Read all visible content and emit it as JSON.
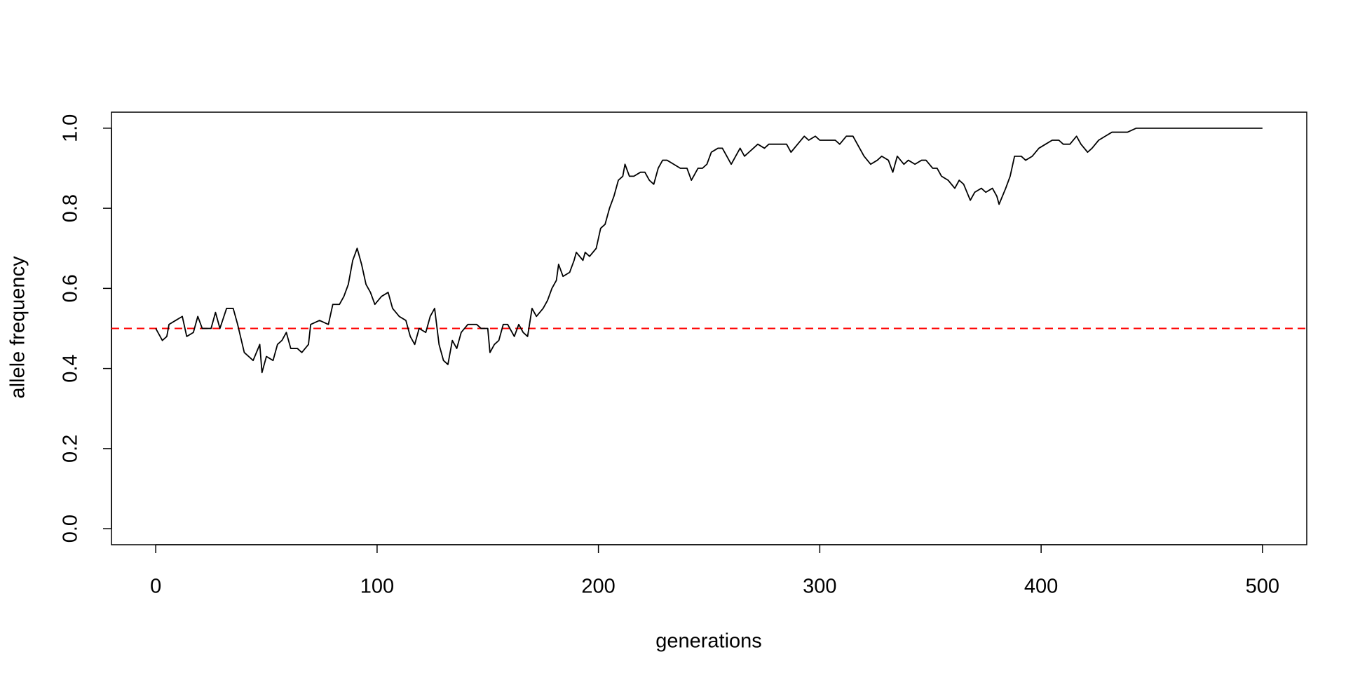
{
  "chart_data": {
    "type": "line",
    "x_label": "generations",
    "y_label": "allele frequency",
    "x": [
      0,
      3,
      5,
      6,
      9,
      12,
      14,
      17,
      19,
      21,
      25,
      27,
      29,
      32,
      35,
      37,
      40,
      44,
      47,
      48,
      50,
      53,
      55,
      57,
      59,
      61,
      64,
      66,
      69,
      70,
      74,
      78,
      80,
      83,
      85,
      87,
      89,
      91,
      93,
      95,
      97,
      99,
      102,
      105,
      107,
      110,
      113,
      115,
      117,
      119,
      122,
      124,
      126,
      128,
      130,
      132,
      134,
      136,
      138,
      141,
      143,
      145,
      147,
      150,
      151,
      153,
      155,
      157,
      159,
      162,
      164,
      166,
      168,
      170,
      172,
      175,
      177,
      179,
      181,
      182,
      184,
      187,
      189,
      190,
      193,
      194,
      196,
      199,
      201,
      203,
      205,
      207,
      209,
      211,
      212,
      214,
      216,
      219,
      221,
      223,
      225,
      227,
      229,
      231,
      234,
      237,
      240,
      242,
      245,
      247,
      249,
      251,
      254,
      256,
      258,
      260,
      262,
      264,
      266,
      268,
      270,
      272,
      275,
      277,
      279,
      282,
      285,
      287,
      290,
      293,
      295,
      298,
      300,
      304,
      307,
      309,
      312,
      315,
      318,
      320,
      323,
      326,
      328,
      331,
      333,
      335,
      338,
      340,
      343,
      346,
      348,
      351,
      353,
      355,
      358,
      361,
      363,
      365,
      368,
      370,
      373,
      375,
      378,
      380,
      381,
      384,
      386,
      388,
      391,
      393,
      396,
      399,
      402,
      405,
      408,
      410,
      413,
      416,
      418,
      421,
      423,
      426,
      429,
      432,
      435,
      439,
      443,
      446,
      450,
      500
    ],
    "values": [
      0.5,
      0.47,
      0.48,
      0.51,
      0.52,
      0.53,
      0.48,
      0.49,
      0.53,
      0.5,
      0.5,
      0.54,
      0.5,
      0.55,
      0.55,
      0.51,
      0.44,
      0.42,
      0.46,
      0.39,
      0.43,
      0.42,
      0.46,
      0.47,
      0.49,
      0.45,
      0.45,
      0.44,
      0.46,
      0.51,
      0.52,
      0.51,
      0.56,
      0.56,
      0.58,
      0.61,
      0.67,
      0.7,
      0.66,
      0.61,
      0.59,
      0.56,
      0.58,
      0.59,
      0.55,
      0.53,
      0.52,
      0.48,
      0.46,
      0.5,
      0.49,
      0.53,
      0.55,
      0.46,
      0.42,
      0.41,
      0.47,
      0.45,
      0.49,
      0.51,
      0.51,
      0.51,
      0.5,
      0.5,
      0.44,
      0.46,
      0.47,
      0.51,
      0.51,
      0.48,
      0.51,
      0.49,
      0.48,
      0.55,
      0.53,
      0.55,
      0.57,
      0.6,
      0.62,
      0.66,
      0.63,
      0.64,
      0.67,
      0.69,
      0.67,
      0.69,
      0.68,
      0.7,
      0.75,
      0.76,
      0.8,
      0.83,
      0.87,
      0.88,
      0.91,
      0.88,
      0.88,
      0.89,
      0.89,
      0.87,
      0.86,
      0.9,
      0.92,
      0.92,
      0.91,
      0.9,
      0.9,
      0.87,
      0.9,
      0.9,
      0.91,
      0.94,
      0.95,
      0.95,
      0.93,
      0.91,
      0.93,
      0.95,
      0.93,
      0.94,
      0.95,
      0.96,
      0.95,
      0.96,
      0.96,
      0.96,
      0.96,
      0.94,
      0.96,
      0.98,
      0.97,
      0.98,
      0.97,
      0.97,
      0.97,
      0.96,
      0.98,
      0.98,
      0.95,
      0.93,
      0.91,
      0.92,
      0.93,
      0.92,
      0.89,
      0.93,
      0.91,
      0.92,
      0.91,
      0.92,
      0.92,
      0.9,
      0.9,
      0.88,
      0.87,
      0.85,
      0.87,
      0.86,
      0.82,
      0.84,
      0.85,
      0.84,
      0.85,
      0.83,
      0.81,
      0.85,
      0.88,
      0.93,
      0.93,
      0.92,
      0.93,
      0.95,
      0.96,
      0.97,
      0.97,
      0.96,
      0.96,
      0.98,
      0.96,
      0.94,
      0.95,
      0.97,
      0.98,
      0.99,
      0.99,
      0.99,
      1.0,
      1.0,
      1.0,
      1.0
    ],
    "color": "#000000",
    "reference_line": {
      "value": 0.5,
      "color": "#ff0000",
      "linestyle": "dashed"
    },
    "xlim": [
      -20,
      520
    ],
    "ylim": [
      -0.04,
      1.04
    ],
    "xticks": [
      0,
      100,
      200,
      300,
      400,
      500
    ],
    "yticks": [
      {
        "value": 0,
        "label": "0.0"
      },
      0.2,
      0.4,
      0.6,
      0.8,
      {
        "value": 1,
        "label": "1.0"
      }
    ]
  }
}
